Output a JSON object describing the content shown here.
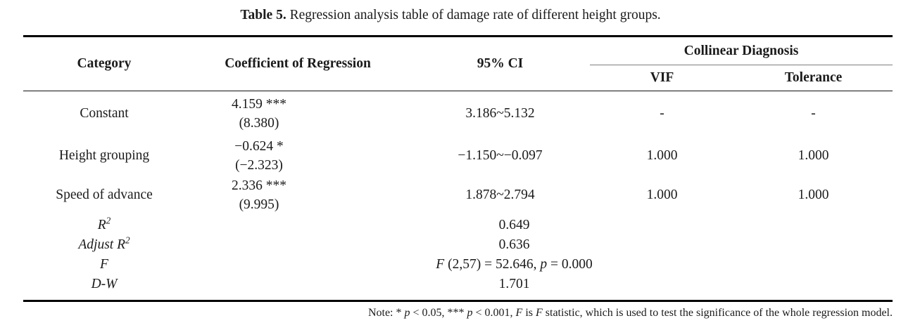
{
  "caption": {
    "label": "Table 5.",
    "text": " Regression analysis table of damage rate of different height groups."
  },
  "table": {
    "headers": {
      "category": "Category",
      "coefficient": "Coefficient of Regression",
      "ci": "95% CI",
      "collinear": "Collinear Diagnosis",
      "vif": "VIF",
      "tolerance": "Tolerance"
    },
    "rows": [
      {
        "category": "Constant",
        "coef": "4.159 ***",
        "t_value": "(8.380)",
        "ci": "3.186~5.132",
        "vif": "-",
        "tolerance": "-"
      },
      {
        "category": "Height grouping",
        "coef": "−0.624 *",
        "t_value": "(−2.323)",
        "ci": "−1.150~−0.097",
        "vif": "1.000",
        "tolerance": "1.000"
      },
      {
        "category": "Speed of advance",
        "coef": "2.336 ***",
        "t_value": "(9.995)",
        "ci": "1.878~2.794",
        "vif": "1.000",
        "tolerance": "1.000"
      }
    ],
    "summary": [
      {
        "label": "R",
        "sup": "2",
        "value": "0.649"
      },
      {
        "label": "Adjust R",
        "sup": "2",
        "value": "0.636"
      },
      {
        "label": "F",
        "parts": {
          "f": "F",
          "mid": " (2,57) = 52.646, ",
          "p": "p",
          "end": " = 0.000"
        }
      },
      {
        "label": "D-W",
        "value": "1.701"
      }
    ]
  },
  "note": {
    "parts": {
      "p0": "Note: * ",
      "p1": "p",
      "p2": " < 0.05, *** ",
      "p3": "p",
      "p4": " < 0.001, ",
      "p5": "F",
      "p6": " is ",
      "p7": "F",
      "p8": " statistic, which is used to test the significance of the whole regression model."
    }
  }
}
